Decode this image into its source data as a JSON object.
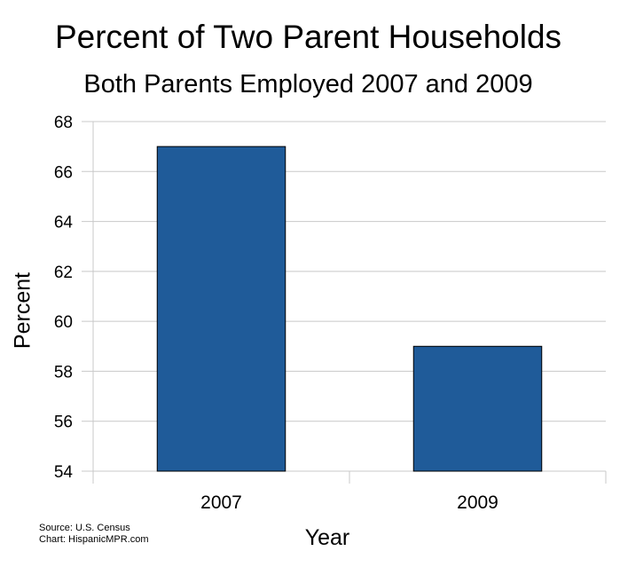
{
  "chart_data": {
    "type": "bar",
    "title": "Percent of Two Parent Households",
    "subtitle": "Both Parents Employed 2007 and 2009",
    "xlabel": "Year",
    "ylabel": "Percent",
    "categories": [
      "2007",
      "2009"
    ],
    "values": [
      67,
      59
    ],
    "ylim": [
      54,
      68
    ],
    "yticks": [
      54,
      56,
      58,
      60,
      62,
      64,
      66,
      68
    ],
    "grid": true,
    "bar_color": "#1f5b99",
    "legend": "none"
  },
  "footer": {
    "source": "Source: U.S. Census",
    "chart_credit": "Chart: HispanicMPR.com"
  }
}
